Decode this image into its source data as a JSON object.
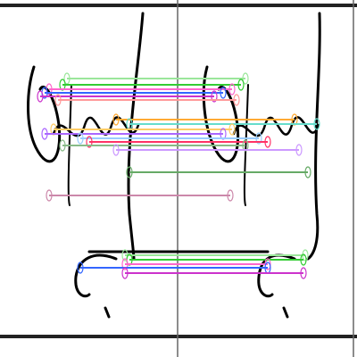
{
  "view": {
    "background": "#ffffff",
    "ink_color": "#000000",
    "frame_color": "#444444"
  },
  "drawing": {
    "left_group": {
      "description_icon": "left-handwritten-stroke-group"
    },
    "right_group": {
      "description_icon": "right-handwritten-stroke-group"
    }
  },
  "annotation_colors": [
    "#9be69b",
    "#33cc33",
    "#ff66cc",
    "#3366ff",
    "#cc33cc",
    "#ff9999",
    "#ffaa33",
    "#66ddcc",
    "#ffcc66",
    "#aa66ff",
    "#99ccff",
    "#ff3366",
    "#88bb88",
    "#cc99ff",
    "#66aa66",
    "#cc88aa"
  ]
}
